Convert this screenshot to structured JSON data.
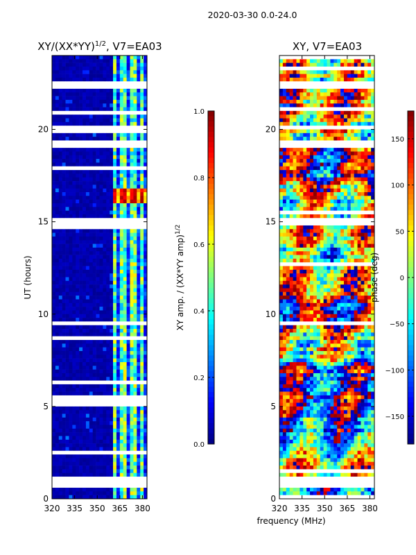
{
  "figure": {
    "suptitle": "2020-03-30 0.0-24.0",
    "xlabel": "frequency (MHz)"
  },
  "colors": {
    "jet_low": "#00007f",
    "jet_high": "#7f0000",
    "background": "#ffffff",
    "flag": "#ffffff"
  },
  "chart_data": [
    {
      "type": "heatmap",
      "title_main": "XY/(XX*YY)",
      "title_sup": "1/2",
      "title_rest": ", V7=EA03",
      "xlabel": "",
      "ylabel": "UT (hours)",
      "xlim": [
        320,
        383
      ],
      "ylim": [
        0,
        24
      ],
      "xticks": [
        "320",
        "335",
        "350",
        "365",
        "380"
      ],
      "yticks": [
        "0",
        "5",
        "10",
        "15",
        "20"
      ],
      "colorbar": {
        "label_main": "XY amp. / (XX*YY amp)",
        "label_sup": "1/2",
        "range": [
          0.0,
          1.0
        ],
        "ticks": [
          "0.0",
          "0.2",
          "0.4",
          "0.6",
          "0.8",
          "1.0"
        ]
      },
      "bright_columns_mhz": [
        362,
        366,
        369,
        373,
        376,
        380
      ],
      "bright_band_ut": [
        16.1,
        16.8
      ],
      "flagged_ut_ranges": [
        [
          0.6,
          1.1
        ],
        [
          14.9,
          15.1
        ],
        [
          19.1,
          19.3
        ],
        [
          22.2,
          22.6
        ]
      ]
    },
    {
      "type": "heatmap",
      "title": "XY, V7=EA03",
      "xlabel": "",
      "ylabel": "",
      "xlim": [
        320,
        383
      ],
      "ylim": [
        0,
        24
      ],
      "xticks": [
        "320",
        "335",
        "350",
        "365",
        "380"
      ],
      "yticks": [
        "0",
        "5",
        "10",
        "15",
        "20"
      ],
      "colorbar": {
        "label": "phase (deg)",
        "range": [
          -180,
          180
        ],
        "ticks": [
          "−150",
          "−100",
          "−50",
          "0",
          "50",
          "100",
          "150"
        ]
      },
      "flagged_ut_ranges": [
        [
          0.6,
          1.1
        ],
        [
          14.9,
          15.1
        ],
        [
          19.1,
          19.3
        ],
        [
          22.2,
          22.6
        ]
      ]
    }
  ]
}
